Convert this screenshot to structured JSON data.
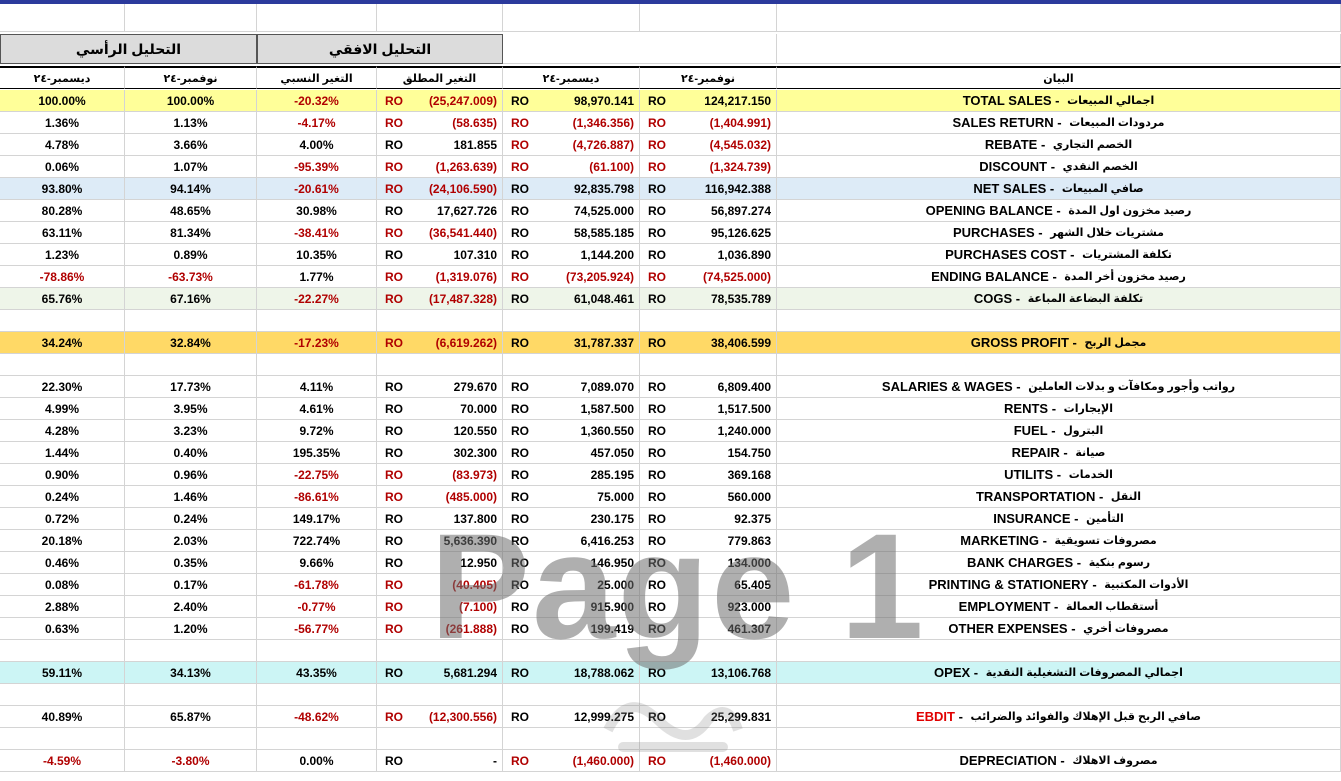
{
  "headers": {
    "vertical": "التحليل الرأسي",
    "horizontal": "التحليل الافقي",
    "cols": [
      "ديسمبر-٢٤",
      "نوفمبر-٢٤",
      "التغير النسبي",
      "التغير المطلق",
      "ديسمبر-٢٤",
      "نوفمبر-٢٤",
      "البيان"
    ]
  },
  "currency": "RO",
  "watermark": "Page 1",
  "rows": [
    {
      "type": "data",
      "bg": "#ffff99",
      "vDec": "100.00%",
      "vNov": "100.00%",
      "rel": "-20.32%",
      "relNeg": true,
      "abs": "(25,247.009)",
      "absNeg": true,
      "dec": "98,970.141",
      "decNeg": false,
      "nov": "124,217.150",
      "novNeg": false,
      "en": "TOTAL SALES",
      "ar": "اجمالي المبيعات"
    },
    {
      "type": "data",
      "bg": "",
      "vDec": "1.36%",
      "vNov": "1.13%",
      "rel": "-4.17%",
      "relNeg": true,
      "abs": "(58.635)",
      "absNeg": true,
      "dec": "(1,346.356)",
      "decNeg": true,
      "nov": "(1,404.991)",
      "novNeg": true,
      "en": "SALES RETURN",
      "ar": "مردودات المبيعات"
    },
    {
      "type": "data",
      "bg": "",
      "vDec": "4.78%",
      "vNov": "3.66%",
      "rel": "4.00%",
      "relNeg": false,
      "abs": "181.855",
      "absNeg": false,
      "dec": "(4,726.887)",
      "decNeg": true,
      "nov": "(4,545.032)",
      "novNeg": true,
      "en": "REBATE",
      "ar": "الخصم التجاري"
    },
    {
      "type": "data",
      "bg": "",
      "vDec": "0.06%",
      "vNov": "1.07%",
      "rel": "-95.39%",
      "relNeg": true,
      "abs": "(1,263.639)",
      "absNeg": true,
      "dec": "(61.100)",
      "decNeg": true,
      "nov": "(1,324.739)",
      "novNeg": true,
      "en": "DISCOUNT",
      "ar": "الخصم النقدي"
    },
    {
      "type": "data",
      "bg": "#ddebf7",
      "vDec": "93.80%",
      "vNov": "94.14%",
      "rel": "-20.61%",
      "relNeg": true,
      "abs": "(24,106.590)",
      "absNeg": true,
      "dec": "92,835.798",
      "decNeg": false,
      "nov": "116,942.388",
      "novNeg": false,
      "en": "NET SALES",
      "ar": "صافي المبيعات"
    },
    {
      "type": "data",
      "bg": "",
      "vDec": "80.28%",
      "vNov": "48.65%",
      "rel": "30.98%",
      "relNeg": false,
      "abs": "17,627.726",
      "absNeg": false,
      "dec": "74,525.000",
      "decNeg": false,
      "nov": "56,897.274",
      "novNeg": false,
      "en": "OPENING BALANCE",
      "ar": "رصيد مخزون اول المدة"
    },
    {
      "type": "data",
      "bg": "",
      "vDec": "63.11%",
      "vNov": "81.34%",
      "rel": "-38.41%",
      "relNeg": true,
      "abs": "(36,541.440)",
      "absNeg": true,
      "dec": "58,585.185",
      "decNeg": false,
      "nov": "95,126.625",
      "novNeg": false,
      "en": "PURCHASES",
      "ar": "مشتريات خلال الشهر"
    },
    {
      "type": "data",
      "bg": "",
      "vDec": "1.23%",
      "vNov": "0.89%",
      "rel": "10.35%",
      "relNeg": false,
      "abs": "107.310",
      "absNeg": false,
      "dec": "1,144.200",
      "decNeg": false,
      "nov": "1,036.890",
      "novNeg": false,
      "en": "PURCHASES COST",
      "ar": "تكلفة المشتريات"
    },
    {
      "type": "data",
      "bg": "",
      "vDec": "-78.86%",
      "vNov": "-63.73%",
      "vNeg": true,
      "rel": "1.77%",
      "relNeg": false,
      "abs": "(1,319.076)",
      "absNeg": true,
      "dec": "(73,205.924)",
      "decNeg": true,
      "nov": "(74,525.000)",
      "novNeg": true,
      "en": "ENDING BALANCE",
      "ar": "رصيد مخزون أخر المدة"
    },
    {
      "type": "data",
      "bg": "#eef5e9",
      "vDec": "65.76%",
      "vNov": "67.16%",
      "rel": "-22.27%",
      "relNeg": true,
      "abs": "(17,487.328)",
      "absNeg": true,
      "dec": "61,048.461",
      "decNeg": false,
      "nov": "78,535.789",
      "novNeg": false,
      "en": "COGS",
      "ar": "تكلفة البضاعة المباعة"
    },
    {
      "type": "empty"
    },
    {
      "type": "data",
      "bg": "#ffd966",
      "vDec": "34.24%",
      "vNov": "32.84%",
      "rel": "-17.23%",
      "relNeg": true,
      "abs": "(6,619.262)",
      "absNeg": true,
      "dec": "31,787.337",
      "decNeg": false,
      "nov": "38,406.599",
      "novNeg": false,
      "en": "GROSS PROFIT",
      "ar": "مجمل الربح"
    },
    {
      "type": "empty"
    },
    {
      "type": "data",
      "bg": "",
      "vDec": "22.30%",
      "vNov": "17.73%",
      "rel": "4.11%",
      "relNeg": false,
      "abs": "279.670",
      "absNeg": false,
      "dec": "7,089.070",
      "decNeg": false,
      "nov": "6,809.400",
      "novNeg": false,
      "en": "SALARIES & WAGES",
      "ar": "رواتب وأجور ومكافآت و بدلات العاملين"
    },
    {
      "type": "data",
      "bg": "",
      "vDec": "4.99%",
      "vNov": "3.95%",
      "rel": "4.61%",
      "relNeg": false,
      "abs": "70.000",
      "absNeg": false,
      "dec": "1,587.500",
      "decNeg": false,
      "nov": "1,517.500",
      "novNeg": false,
      "en": "RENTS",
      "ar": "الإيجارات"
    },
    {
      "type": "data",
      "bg": "",
      "vDec": "4.28%",
      "vNov": "3.23%",
      "rel": "9.72%",
      "relNeg": false,
      "abs": "120.550",
      "absNeg": false,
      "dec": "1,360.550",
      "decNeg": false,
      "nov": "1,240.000",
      "novNeg": false,
      "en": "FUEL",
      "ar": "البترول"
    },
    {
      "type": "data",
      "bg": "",
      "vDec": "1.44%",
      "vNov": "0.40%",
      "rel": "195.35%",
      "relNeg": false,
      "abs": "302.300",
      "absNeg": false,
      "dec": "457.050",
      "decNeg": false,
      "nov": "154.750",
      "novNeg": false,
      "en": "REPAIR",
      "ar": "صيانة"
    },
    {
      "type": "data",
      "bg": "",
      "vDec": "0.90%",
      "vNov": "0.96%",
      "rel": "-22.75%",
      "relNeg": true,
      "abs": "(83.973)",
      "absNeg": true,
      "dec": "285.195",
      "decNeg": false,
      "nov": "369.168",
      "novNeg": false,
      "en": "UTILITS",
      "ar": "الخدمات"
    },
    {
      "type": "data",
      "bg": "",
      "vDec": "0.24%",
      "vNov": "1.46%",
      "rel": "-86.61%",
      "relNeg": true,
      "abs": "(485.000)",
      "absNeg": true,
      "dec": "75.000",
      "decNeg": false,
      "nov": "560.000",
      "novNeg": false,
      "en": "TRANSPORTATION",
      "ar": "النقل"
    },
    {
      "type": "data",
      "bg": "",
      "vDec": "0.72%",
      "vNov": "0.24%",
      "rel": "149.17%",
      "relNeg": false,
      "abs": "137.800",
      "absNeg": false,
      "dec": "230.175",
      "decNeg": false,
      "nov": "92.375",
      "novNeg": false,
      "en": "INSURANCE",
      "ar": "التأمين"
    },
    {
      "type": "data",
      "bg": "",
      "vDec": "20.18%",
      "vNov": "2.03%",
      "rel": "722.74%",
      "relNeg": false,
      "abs": "5,636.390",
      "absNeg": false,
      "dec": "6,416.253",
      "decNeg": false,
      "nov": "779.863",
      "novNeg": false,
      "en": "MARKETING",
      "ar": "مصروفات تسويقية"
    },
    {
      "type": "data",
      "bg": "",
      "vDec": "0.46%",
      "vNov": "0.35%",
      "rel": "9.66%",
      "relNeg": false,
      "abs": "12.950",
      "absNeg": false,
      "dec": "146.950",
      "decNeg": false,
      "nov": "134.000",
      "novNeg": false,
      "en": "BANK CHARGES",
      "ar": "رسوم بنكية"
    },
    {
      "type": "data",
      "bg": "",
      "vDec": "0.08%",
      "vNov": "0.17%",
      "rel": "-61.78%",
      "relNeg": true,
      "abs": "(40.405)",
      "absNeg": true,
      "dec": "25.000",
      "decNeg": false,
      "nov": "65.405",
      "novNeg": false,
      "en": "PRINTING & STATIONERY",
      "ar": "الأدوات المكتبية"
    },
    {
      "type": "data",
      "bg": "",
      "vDec": "2.88%",
      "vNov": "2.40%",
      "rel": "-0.77%",
      "relNeg": true,
      "abs": "(7.100)",
      "absNeg": true,
      "dec": "915.900",
      "decNeg": false,
      "nov": "923.000",
      "novNeg": false,
      "en": "EMPLOYMENT",
      "ar": "أستقطاب العمالة"
    },
    {
      "type": "data",
      "bg": "",
      "vDec": "0.63%",
      "vNov": "1.20%",
      "rel": "-56.77%",
      "relNeg": true,
      "abs": "(261.888)",
      "absNeg": true,
      "dec": "199.419",
      "decNeg": false,
      "nov": "461.307",
      "novNeg": false,
      "en": "OTHER EXPENSES",
      "ar": "مصروفات أخري"
    },
    {
      "type": "empty"
    },
    {
      "type": "data",
      "bg": "#ccf5f5",
      "vDec": "59.11%",
      "vNov": "34.13%",
      "rel": "43.35%",
      "relNeg": false,
      "abs": "5,681.294",
      "absNeg": false,
      "dec": "18,788.062",
      "decNeg": false,
      "nov": "13,106.768",
      "novNeg": false,
      "en": "OPEX",
      "ar": "اجمالي المصروفات التشغيلية النقدية"
    },
    {
      "type": "empty"
    },
    {
      "type": "data",
      "bg": "",
      "vDec": "40.89%",
      "vNov": "65.87%",
      "rel": "-48.62%",
      "relNeg": true,
      "abs": "(12,300.556)",
      "absNeg": true,
      "dec": "12,999.275",
      "decNeg": false,
      "nov": "25,299.831",
      "novNeg": false,
      "en": "EBDIT",
      "enRed": true,
      "ar": "صافي الربح قبل الإهلاك والفوائد والضرائب"
    },
    {
      "type": "empty"
    },
    {
      "type": "data",
      "bg": "",
      "vDec": "-4.59%",
      "vNov": "-3.80%",
      "vNeg": true,
      "rel": "0.00%",
      "relNeg": false,
      "abs": "-",
      "absNeg": false,
      "dec": "(1,460.000)",
      "decNeg": true,
      "nov": "(1,460.000)",
      "novNeg": true,
      "en": "DEPRECIATION",
      "ar": "مصروف الاهلاك"
    }
  ]
}
